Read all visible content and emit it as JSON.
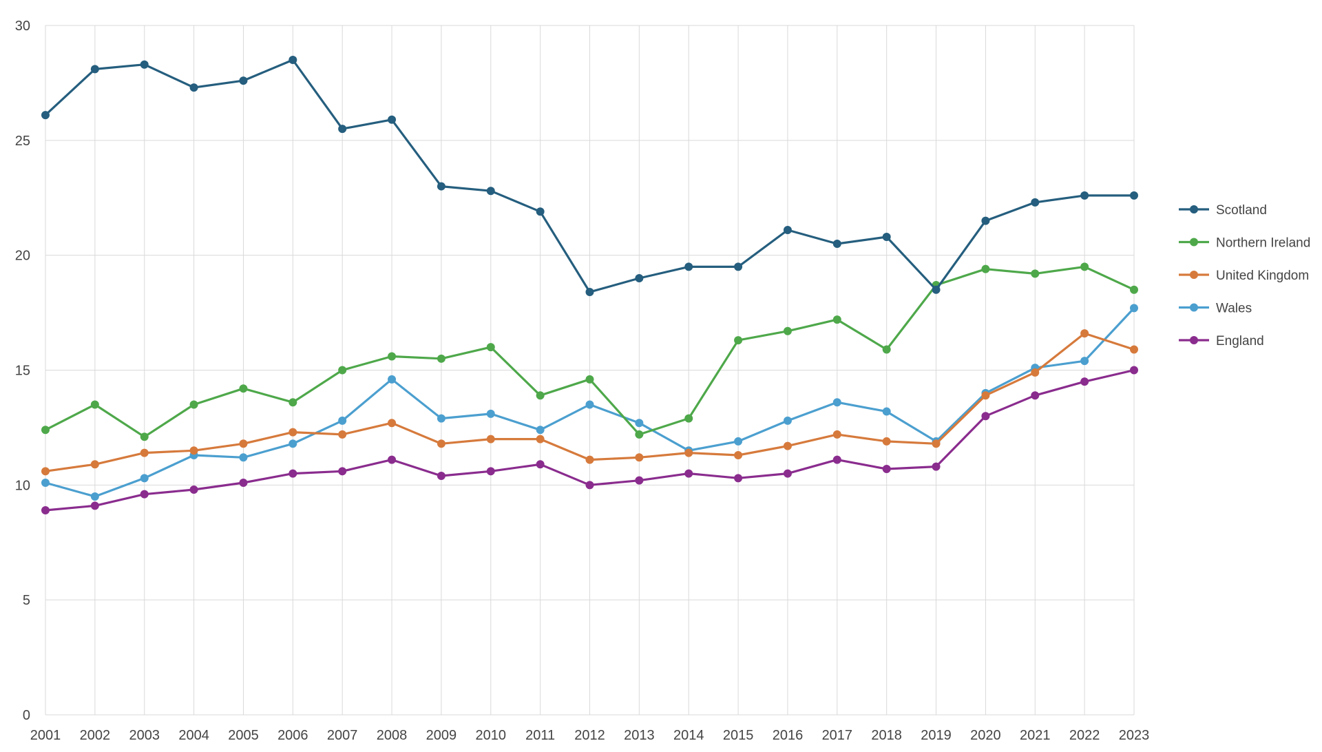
{
  "chart_data": {
    "type": "line",
    "title": "",
    "xlabel": "",
    "ylabel": "",
    "ylim": [
      0,
      30
    ],
    "yticks": [
      0,
      5,
      10,
      15,
      20,
      25,
      30
    ],
    "grid": true,
    "legend_position": "right",
    "x": [
      "2001",
      "2002",
      "2003",
      "2004",
      "2005",
      "2006",
      "2007",
      "2008",
      "2009",
      "2010",
      "2011",
      "2012",
      "2013",
      "2014",
      "2015",
      "2016",
      "2017",
      "2018",
      "2019",
      "2020",
      "2021",
      "2022",
      "2023"
    ],
    "series": [
      {
        "name": "Scotland",
        "color": "#255e7e",
        "values": [
          26.1,
          28.1,
          28.3,
          27.3,
          27.6,
          28.5,
          25.5,
          25.9,
          23.0,
          22.8,
          21.9,
          18.4,
          19.0,
          19.5,
          19.5,
          21.1,
          20.5,
          20.8,
          18.5,
          21.5,
          22.3,
          22.6,
          22.6
        ]
      },
      {
        "name": "Northern Ireland",
        "color": "#4ea84a",
        "values": [
          12.4,
          13.5,
          12.1,
          13.5,
          14.2,
          13.6,
          15.0,
          15.6,
          15.5,
          16.0,
          13.9,
          14.6,
          12.2,
          12.9,
          16.3,
          16.7,
          17.2,
          15.9,
          18.7,
          19.4,
          19.2,
          19.5,
          18.5
        ]
      },
      {
        "name": "United Kingdom",
        "color": "#d67a3c",
        "values": [
          10.6,
          10.9,
          11.4,
          11.5,
          11.8,
          12.3,
          12.2,
          12.7,
          11.8,
          12.0,
          12.0,
          11.1,
          11.2,
          11.4,
          11.3,
          11.7,
          12.2,
          11.9,
          11.8,
          13.9,
          14.9,
          16.6,
          15.9
        ]
      },
      {
        "name": "Wales",
        "color": "#4b9fcf",
        "values": [
          10.1,
          9.5,
          10.3,
          11.3,
          11.2,
          11.8,
          12.8,
          14.6,
          12.9,
          13.1,
          12.4,
          13.5,
          12.7,
          11.5,
          11.9,
          12.8,
          13.6,
          13.2,
          11.9,
          14.0,
          15.1,
          15.4,
          17.7
        ]
      },
      {
        "name": "England",
        "color": "#8a2c8e",
        "values": [
          8.9,
          9.1,
          9.6,
          9.8,
          10.1,
          10.5,
          10.6,
          11.1,
          10.4,
          10.6,
          10.9,
          10.0,
          10.2,
          10.5,
          10.3,
          10.5,
          11.1,
          10.7,
          10.8,
          13.0,
          13.9,
          14.5,
          15.0
        ]
      }
    ]
  }
}
